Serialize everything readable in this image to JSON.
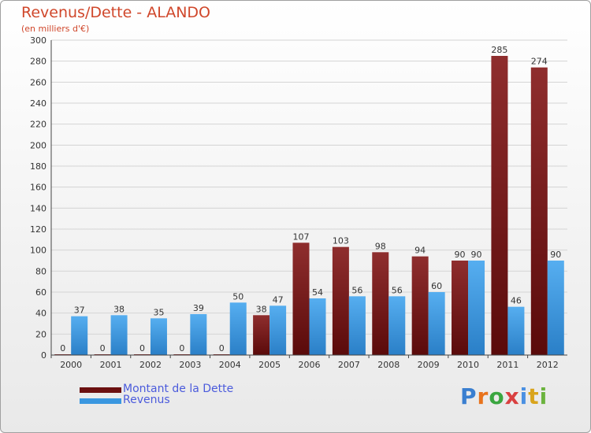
{
  "chart_data": {
    "type": "bar",
    "title": "Revenus/Dette - ALANDO",
    "subtitle": "(en milliers d'€)",
    "categories": [
      "2000",
      "2001",
      "2002",
      "2003",
      "2004",
      "2005",
      "2006",
      "2007",
      "2008",
      "2009",
      "2010",
      "2011",
      "2012"
    ],
    "series": [
      {
        "name": "Montant de la Dette",
        "color": "#7a1818",
        "values": [
          0,
          0,
          0,
          0,
          0,
          38,
          107,
          103,
          98,
          94,
          90,
          285,
          274
        ]
      },
      {
        "name": "Revenus",
        "color": "#3a97e0",
        "values": [
          37,
          38,
          35,
          39,
          50,
          47,
          54,
          56,
          56,
          60,
          90,
          46,
          90
        ]
      }
    ],
    "ylim": [
      0,
      300
    ],
    "yticks": [
      0,
      20,
      40,
      60,
      80,
      100,
      120,
      140,
      160,
      180,
      200,
      220,
      240,
      260,
      280,
      300
    ],
    "grid": true,
    "legend": "bottom-left"
  },
  "legend": {
    "debt_label": "Montant de la Dette",
    "revenue_label": "Revenus"
  },
  "logo": {
    "letters": [
      "P",
      "r",
      "o",
      "x",
      "i",
      "t",
      "i"
    ],
    "colors": [
      "#3a7fd0",
      "#e8731c",
      "#3aa640",
      "#d94040",
      "#4a90e2",
      "#d9a41c",
      "#6cb33e"
    ]
  }
}
